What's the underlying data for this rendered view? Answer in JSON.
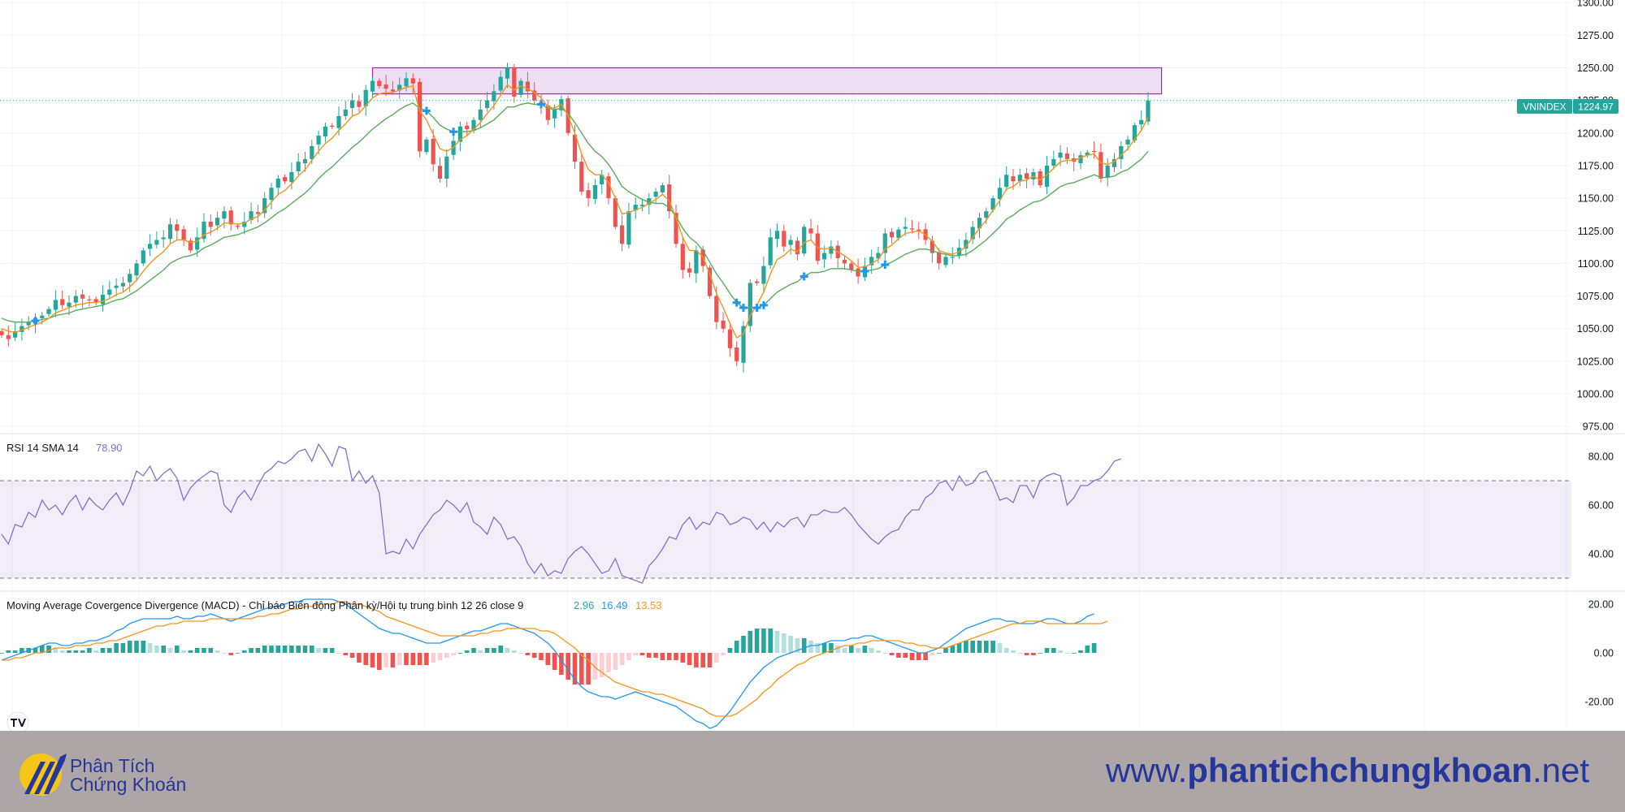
{
  "chart_data": [
    {
      "type": "candlestick",
      "symbol": "VNINDEX",
      "last_price": "1224.97",
      "y_ticks": [
        "1300.00",
        "1275.00",
        "1250.00",
        "1225.00",
        "1200.00",
        "1175.00",
        "1150.00",
        "1125.00",
        "1100.00",
        "1075.00",
        "1050.00",
        "1025.00",
        "1000.00",
        "975.00"
      ],
      "ylim": [
        972,
        1302
      ],
      "resistance_zone": {
        "low": 1230,
        "high": 1250,
        "start_bar": 55,
        "end_bar": 172
      },
      "colors": {
        "up": "#26a69a",
        "down": "#ef5350",
        "ma_fast": "#f7931a",
        "ma_slow": "#5aab5d",
        "zone_fill": "#e8d3ef",
        "zone_border": "#9c27b0",
        "marker": "#2196f3"
      },
      "closes": [
        1045,
        1042,
        1048,
        1052,
        1055,
        1058,
        1060,
        1065,
        1072,
        1068,
        1070,
        1075,
        1073,
        1072,
        1070,
        1076,
        1080,
        1083,
        1085,
        1092,
        1100,
        1110,
        1115,
        1118,
        1120,
        1130,
        1125,
        1118,
        1110,
        1120,
        1132,
        1128,
        1135,
        1140,
        1130,
        1128,
        1132,
        1140,
        1138,
        1150,
        1158,
        1165,
        1163,
        1170,
        1178,
        1180,
        1190,
        1198,
        1205,
        1205,
        1213,
        1218,
        1225,
        1220,
        1233,
        1240,
        1236,
        1234,
        1232,
        1237,
        1242,
        1238,
        1186,
        1195,
        1176,
        1165,
        1182,
        1194,
        1205,
        1203,
        1210,
        1218,
        1225,
        1232,
        1243,
        1250,
        1228,
        1240,
        1232,
        1225,
        1221,
        1210,
        1218,
        1226,
        1200,
        1178,
        1155,
        1150,
        1160,
        1168,
        1150,
        1128,
        1115,
        1140,
        1145,
        1145,
        1150,
        1155,
        1160,
        1140,
        1115,
        1095,
        1093,
        1110,
        1098,
        1075,
        1055,
        1050,
        1035,
        1025,
        1052,
        1085,
        1085,
        1098,
        1120,
        1125,
        1113,
        1118,
        1107,
        1128,
        1123,
        1102,
        1108,
        1113,
        1104,
        1100,
        1095,
        1090,
        1098,
        1105,
        1108,
        1123,
        1120,
        1126,
        1128,
        1126,
        1125,
        1118,
        1108,
        1100,
        1105,
        1105,
        1112,
        1118,
        1128,
        1135,
        1140,
        1150,
        1158,
        1168,
        1163,
        1168,
        1165,
        1170,
        1160,
        1175,
        1180,
        1185,
        1180,
        1178,
        1183,
        1185,
        1186,
        1165,
        1175,
        1180,
        1190,
        1195,
        1206,
        1210,
        1225
      ],
      "ma_fast": [
        1050,
        1048,
        1047,
        1049,
        1051,
        1053,
        1055,
        1058,
        1062,
        1064,
        1066,
        1068,
        1069,
        1070,
        1070,
        1071,
        1073,
        1076,
        1078,
        1082,
        1087,
        1094,
        1100,
        1105,
        1109,
        1115,
        1118,
        1118,
        1116,
        1117,
        1122,
        1124,
        1127,
        1131,
        1131,
        1130,
        1131,
        1134,
        1136,
        1141,
        1147,
        1153,
        1156,
        1161,
        1167,
        1172,
        1179,
        1186,
        1192,
        1196,
        1202,
        1207,
        1213,
        1215,
        1221,
        1227,
        1230,
        1231,
        1231,
        1233,
        1235,
        1236,
        1217,
        1210,
        1199,
        1188,
        1186,
        1189,
        1195,
        1198,
        1203,
        1208,
        1215,
        1221,
        1229,
        1237,
        1233,
        1236,
        1234,
        1231,
        1227,
        1220,
        1219,
        1222,
        1213,
        1200,
        1184,
        1172,
        1168,
        1168,
        1162,
        1150,
        1138,
        1139,
        1141,
        1143,
        1146,
        1149,
        1153,
        1148,
        1135,
        1120,
        1110,
        1110,
        1105,
        1092,
        1077,
        1066,
        1054,
        1043,
        1046,
        1060,
        1068,
        1078,
        1092,
        1103,
        1106,
        1111,
        1109,
        1116,
        1118,
        1112,
        1111,
        1112,
        1109,
        1106,
        1102,
        1097,
        1097,
        1100,
        1103,
        1111,
        1114,
        1119,
        1123,
        1124,
        1125,
        1122,
        1117,
        1110,
        1108,
        1107,
        1109,
        1113,
        1120,
        1127,
        1133,
        1141,
        1148,
        1157,
        1159,
        1163,
        1164,
        1167,
        1164,
        1168,
        1173,
        1178,
        1179,
        1179,
        1181,
        1183,
        1184,
        1177,
        1176,
        1178,
        1183,
        1188,
        1195,
        1202,
        1212
      ],
      "ma_slow": [
        1058,
        1056,
        1055,
        1055,
        1055,
        1056,
        1057,
        1058,
        1060,
        1061,
        1062,
        1064,
        1065,
        1066,
        1067,
        1068,
        1070,
        1072,
        1073,
        1076,
        1079,
        1083,
        1087,
        1091,
        1095,
        1100,
        1103,
        1105,
        1106,
        1108,
        1112,
        1114,
        1117,
        1120,
        1121,
        1122,
        1124,
        1126,
        1128,
        1131,
        1135,
        1139,
        1142,
        1146,
        1150,
        1154,
        1159,
        1165,
        1170,
        1174,
        1179,
        1184,
        1189,
        1193,
        1198,
        1203,
        1207,
        1211,
        1214,
        1218,
        1221,
        1223,
        1219,
        1217,
        1212,
        1206,
        1203,
        1201,
        1201,
        1201,
        1202,
        1204,
        1207,
        1210,
        1215,
        1220,
        1220,
        1222,
        1223,
        1222,
        1222,
        1219,
        1218,
        1219,
        1215,
        1208,
        1200,
        1192,
        1186,
        1182,
        1176,
        1168,
        1159,
        1155,
        1152,
        1149,
        1147,
        1146,
        1146,
        1143,
        1136,
        1127,
        1120,
        1116,
        1110,
        1101,
        1092,
        1085,
        1077,
        1070,
        1066,
        1066,
        1066,
        1068,
        1073,
        1078,
        1081,
        1084,
        1086,
        1090,
        1093,
        1093,
        1094,
        1096,
        1096,
        1096,
        1095,
        1094,
        1094,
        1095,
        1096,
        1099,
        1101,
        1104,
        1107,
        1109,
        1111,
        1111,
        1110,
        1108,
        1107,
        1106,
        1106,
        1107,
        1110,
        1114,
        1118,
        1123,
        1128,
        1134,
        1137,
        1141,
        1144,
        1147,
        1148,
        1151,
        1155,
        1159,
        1161,
        1162,
        1164,
        1166,
        1168,
        1166,
        1166,
        1167,
        1170,
        1172,
        1176,
        1180,
        1186
      ],
      "marker_bars": [
        5,
        63,
        67,
        80,
        109,
        110,
        112,
        113,
        119,
        128,
        131
      ],
      "spacing": 8.3
    },
    {
      "type": "line",
      "title": "RSI 14 SMA 14",
      "value": "78.90",
      "y_ticks": [
        "80.00",
        "60.00",
        "40.00"
      ],
      "ylim": [
        26,
        88
      ],
      "bands": [
        30,
        70
      ],
      "color": "#8272c9",
      "values": [
        48,
        44,
        52,
        51,
        57,
        55,
        62,
        58,
        60,
        56,
        61,
        64,
        58,
        63,
        60,
        58,
        62,
        65,
        60,
        66,
        74,
        72,
        76,
        70,
        73,
        75,
        71,
        62,
        67,
        70,
        72,
        74,
        73,
        60,
        57,
        63,
        66,
        62,
        68,
        73,
        75,
        78,
        77,
        79,
        82,
        83,
        78,
        85,
        81,
        76,
        84,
        83,
        70,
        74,
        69,
        72,
        65,
        40,
        41,
        40,
        46,
        42,
        48,
        52,
        56,
        58,
        62,
        60,
        57,
        61,
        53,
        51,
        48,
        55,
        52,
        46,
        47,
        43,
        36,
        32,
        36,
        31,
        33,
        32,
        38,
        41,
        43,
        40,
        36,
        32,
        33,
        38,
        31,
        30,
        29,
        28,
        35,
        38,
        42,
        47,
        46,
        52,
        55,
        50,
        53,
        52,
        57,
        56,
        52,
        53,
        55,
        54,
        50,
        53,
        49,
        53,
        51,
        54,
        55,
        51,
        56,
        56,
        58,
        57,
        57,
        59,
        56,
        52,
        49,
        46,
        44,
        47,
        49,
        50,
        55,
        58,
        58,
        63,
        65,
        69,
        70,
        66,
        72,
        68,
        69,
        73,
        74,
        69,
        62,
        63,
        61,
        68,
        68,
        63,
        70,
        72,
        73,
        72,
        60,
        63,
        68,
        68,
        70,
        71,
        74,
        78,
        79
      ]
    },
    {
      "type": "line",
      "title": "Moving Average Covergence Divergence (MACD) - Chỉ báo Biến động Phân kỳ/Hội tụ trung bình 12 26 close 9",
      "values_shown": {
        "histogram": "2.96",
        "macd": "16.49",
        "signal": "13.53"
      },
      "y_ticks": [
        "20.00",
        "0.00",
        "-20.00"
      ],
      "ylim": [
        -32,
        24
      ],
      "colors": {
        "macd": "#2196f3",
        "signal": "#f7931a",
        "hist_up_strong": "#26a69a",
        "hist_up_weak": "#b2dfdb",
        "hist_down_strong": "#ef5350",
        "hist_down_weak": "#ffcdd2"
      },
      "macd": [
        -3,
        -2,
        -1,
        0,
        1,
        2,
        3,
        4,
        4,
        3,
        3,
        4,
        4,
        5,
        5,
        6,
        7,
        9,
        10,
        12,
        13,
        14,
        14,
        14,
        14,
        14,
        15,
        14,
        14,
        15,
        15,
        16,
        15,
        14,
        13,
        14,
        15,
        16,
        17,
        18,
        19,
        19,
        20,
        21,
        21,
        22,
        22,
        22,
        22,
        22,
        21,
        20,
        18,
        16,
        14,
        12,
        10,
        9,
        8,
        8,
        7,
        6,
        5,
        4,
        4,
        4,
        5,
        6,
        7,
        8,
        9,
        9,
        10,
        11,
        12,
        12,
        11,
        10,
        9,
        8,
        6,
        4,
        1,
        -3,
        -7,
        -11,
        -14,
        -16,
        -17,
        -18,
        -18,
        -19,
        -18,
        -17,
        -16,
        -17,
        -18,
        -19,
        -20,
        -21,
        -22,
        -24,
        -26,
        -28,
        -29,
        -31,
        -30,
        -27,
        -24,
        -20,
        -16,
        -12,
        -9,
        -6,
        -4,
        -2,
        -1,
        0,
        1,
        2,
        3,
        3,
        4,
        5,
        5,
        5,
        6,
        6,
        7,
        7,
        6,
        5,
        4,
        3,
        2,
        1,
        0,
        0,
        1,
        2,
        4,
        6,
        8,
        10,
        11,
        12,
        13,
        14,
        14,
        13,
        13,
        12,
        12,
        12,
        13,
        14,
        14,
        13,
        12,
        12,
        13,
        15,
        16
      ],
      "signal": [
        -3,
        -3,
        -2,
        -2,
        -1,
        0,
        0,
        1,
        2,
        2,
        2,
        3,
        3,
        3,
        4,
        4,
        5,
        5,
        6,
        7,
        8,
        9,
        10,
        11,
        11,
        12,
        12,
        13,
        13,
        13,
        13,
        14,
        14,
        14,
        14,
        14,
        14,
        14,
        15,
        15,
        16,
        16,
        17,
        18,
        18,
        19,
        19,
        20,
        20,
        20,
        21,
        21,
        20,
        20,
        19,
        18,
        17,
        15,
        14,
        13,
        12,
        11,
        10,
        9,
        8,
        7,
        7,
        7,
        7,
        7,
        7,
        8,
        8,
        9,
        9,
        10,
        10,
        10,
        10,
        10,
        9,
        9,
        8,
        6,
        4,
        2,
        -1,
        -3,
        -6,
        -8,
        -10,
        -12,
        -13,
        -14,
        -15,
        -16,
        -16,
        -17,
        -17,
        -18,
        -19,
        -20,
        -21,
        -22,
        -23,
        -25,
        -26,
        -26,
        -26,
        -25,
        -23,
        -21,
        -19,
        -16,
        -14,
        -11,
        -9,
        -7,
        -5,
        -4,
        -2,
        -1,
        0,
        1,
        2,
        3,
        3,
        4,
        4,
        5,
        5,
        5,
        5,
        5,
        4,
        4,
        3,
        3,
        2,
        2,
        2,
        3,
        4,
        5,
        6,
        7,
        8,
        9,
        10,
        11,
        12,
        12,
        13,
        13,
        13,
        12,
        12,
        12,
        12,
        12,
        12,
        12,
        12,
        12,
        13
      ]
    }
  ],
  "footer": {
    "brand_line1": "Phân Tích",
    "brand_line2": "Chứng Khoán",
    "site_prefix": "www.",
    "site_bold": "phantichchungkhoan",
    "site_suffix": ".net"
  }
}
